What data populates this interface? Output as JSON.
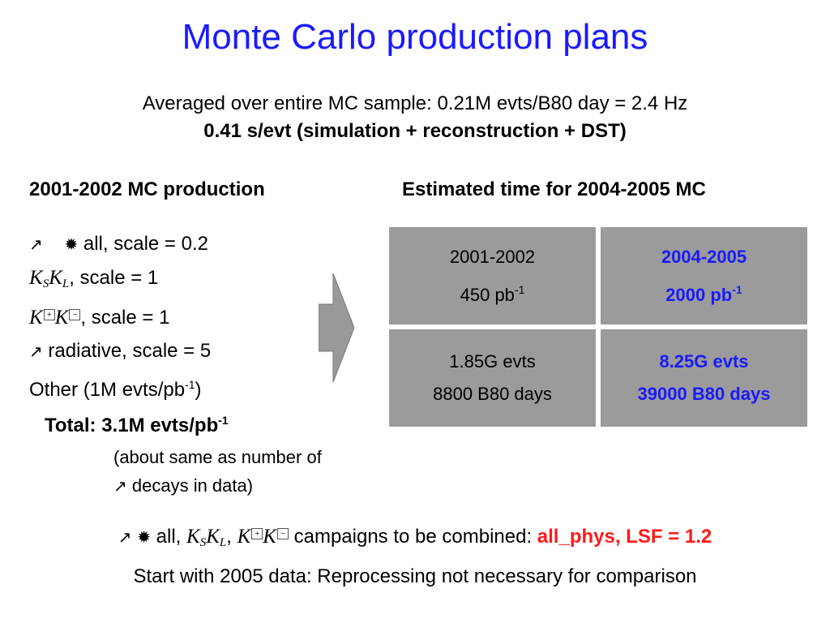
{
  "title": "Monte Carlo production plans",
  "subtitle_line1": "Averaged over entire MC sample: 0.21M evts/B80 day = 2.4 Hz",
  "subtitle_line2": "0.41 s/evt (simulation + reconstruction + DST)",
  "left_column": {
    "heading": "2001-2002 MC production",
    "items": [
      {
        "text": " all, scale = 0.2"
      },
      {
        "text": ", scale = 1"
      },
      {
        "text": ", scale = 1"
      },
      {
        "text": " radiative, scale = 5"
      },
      {
        "text": "Other (1M evts/pb",
        "sup": "-1",
        "tail": ")"
      }
    ],
    "total_label": "Total: 3.1M evts/pb",
    "total_sup": "-1",
    "note_line1": "(about same as number of",
    "note_line2": " decays in data)"
  },
  "right_column": {
    "heading": "Estimated time for 2004-2005 MC",
    "table": {
      "cells": [
        {
          "line1": "2001-2002",
          "line2": "450 pb",
          "sup": "-1"
        },
        {
          "line1": "2004-2005",
          "line2": "2000 pb",
          "sup": "-1"
        },
        {
          "line1": "1.85G evts",
          "line2": "8800 B80 days"
        },
        {
          "line1": "8.25G evts",
          "line2": "39000 B80 days"
        }
      ]
    }
  },
  "footer_line1": {
    "part1": " all, ",
    "part2": " campaigns to be combined: ",
    "highlight": "all_phys, LSF = 1.2"
  },
  "footer_line2": "Start with 2005 data: Reprocessing not necessary for comparison",
  "colors": {
    "title": "#1a1aff",
    "highlight_red": "#ff1a1a",
    "table_bg": "#9b9b9b",
    "arrow": "#999999"
  }
}
